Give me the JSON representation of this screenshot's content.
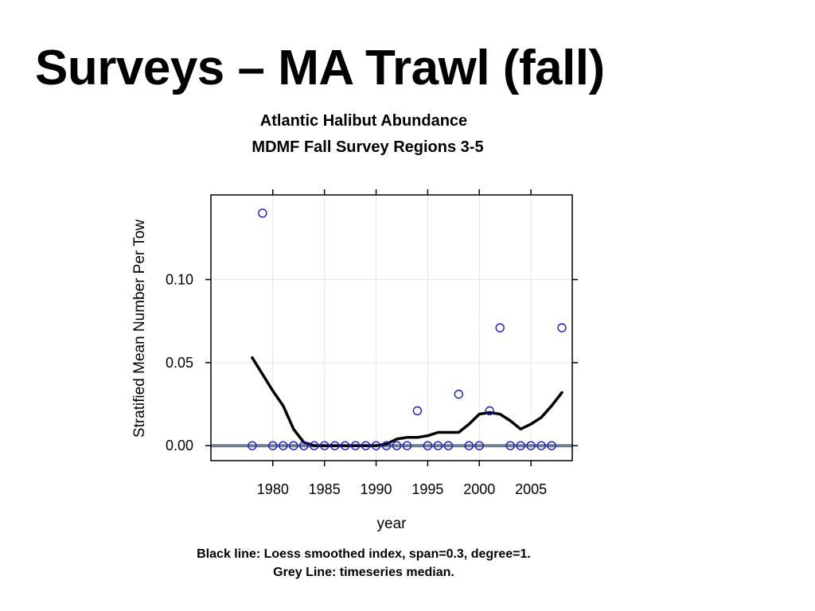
{
  "slide": {
    "title": "Surveys – MA Trawl (fall)",
    "caption_line1": "Black line:  Loess smoothed index, span=0.3, degree=1.",
    "caption_line2": "Grey Line:  timeseries median."
  },
  "chart_data": {
    "type": "scatter",
    "title": "Atlantic Halibut Abundance",
    "subtitle": "MDMF Fall Survey Regions 3-5",
    "xlabel": "year",
    "ylabel": "Stratified Mean Number Per Tow",
    "xlim": [
      1974,
      2009
    ],
    "ylim": [
      -0.009,
      0.151
    ],
    "xticks": [
      1980,
      1985,
      1990,
      1995,
      2000,
      2005
    ],
    "xtick_labels": [
      "1980",
      "1985",
      "1990",
      "1995",
      "2000",
      "2005"
    ],
    "yticks": [
      0.0,
      0.05,
      0.1
    ],
    "ytick_labels": [
      "0.00",
      "0.05",
      "0.10"
    ],
    "grid": true,
    "colors": {
      "points": "#1a1acc",
      "loess": "#000000",
      "median": "#6f7f8f",
      "grid": "#e6e6e6"
    },
    "series": [
      {
        "type": "points",
        "x": [
          1978,
          1979,
          1980,
          1981,
          1982,
          1983,
          1984,
          1985,
          1986,
          1987,
          1988,
          1989,
          1990,
          1991,
          1992,
          1993,
          1994,
          1995,
          1996,
          1997,
          1998,
          1999,
          2000,
          2001,
          2002,
          2003,
          2004,
          2005,
          2006,
          2007,
          2008
        ],
        "y": [
          0.0,
          0.14,
          0.0,
          0.0,
          0.0,
          0.0,
          0.0,
          0.0,
          0.0,
          0.0,
          0.0,
          0.0,
          0.0,
          0.0,
          0.0,
          0.0,
          0.021,
          0.0,
          0.0,
          0.0,
          0.031,
          0.0,
          0.0,
          0.021,
          0.071,
          0.0,
          0.0,
          0.0,
          0.0,
          0.0,
          0.071
        ]
      },
      {
        "type": "loess",
        "x": [
          1978,
          1979,
          1980,
          1981,
          1982,
          1983,
          1984,
          1985,
          1986,
          1987,
          1988,
          1989,
          1990,
          1991,
          1992,
          1993,
          1994,
          1995,
          1996,
          1997,
          1998,
          1999,
          2000,
          2001,
          2002,
          2003,
          2004,
          2005,
          2006,
          2007,
          2008
        ],
        "y": [
          0.053,
          0.043,
          0.033,
          0.024,
          0.01,
          0.002,
          0.0,
          0.0,
          0.0,
          0.0,
          0.0,
          0.0,
          0.0,
          0.001,
          0.004,
          0.005,
          0.005,
          0.006,
          0.008,
          0.008,
          0.008,
          0.013,
          0.019,
          0.02,
          0.019,
          0.015,
          0.01,
          0.013,
          0.017,
          0.024,
          0.032
        ]
      },
      {
        "type": "median",
        "y": 0.0
      }
    ]
  }
}
